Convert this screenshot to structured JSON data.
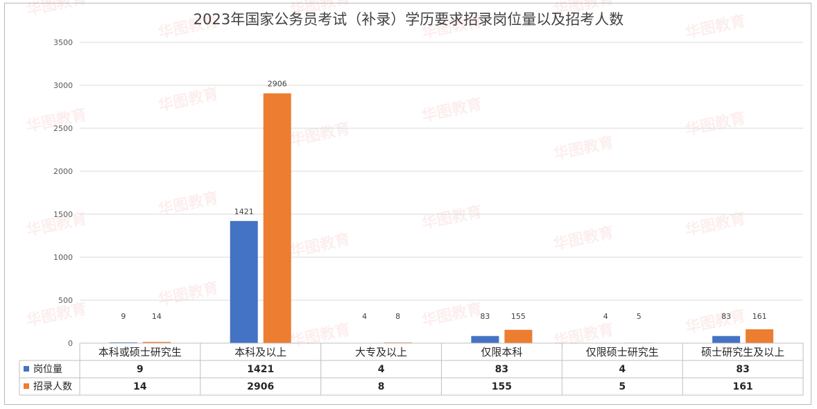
{
  "chart_data": {
    "type": "bar",
    "title": "2023年国家公务员考试（补录）学历要求招录岗位量以及招考人数",
    "categories": [
      "本科或硕士研究生",
      "本科及以上",
      "大专及以上",
      "仅限本科",
      "仅限硕士研究生",
      "硕士研究生及以上"
    ],
    "series": [
      {
        "name": "岗位量",
        "values": [
          9,
          1421,
          4,
          83,
          4,
          83
        ],
        "color": "#4472c4"
      },
      {
        "name": "招录人数",
        "values": [
          14,
          2906,
          8,
          155,
          5,
          161
        ],
        "color": "#ed7d31"
      }
    ],
    "ylim": [
      0,
      3500
    ],
    "yticks": [
      0,
      500,
      1000,
      1500,
      2000,
      2500,
      3000,
      3500
    ],
    "grid": true,
    "legend": "data-table",
    "data_labels": true
  },
  "watermark": "华图教育"
}
